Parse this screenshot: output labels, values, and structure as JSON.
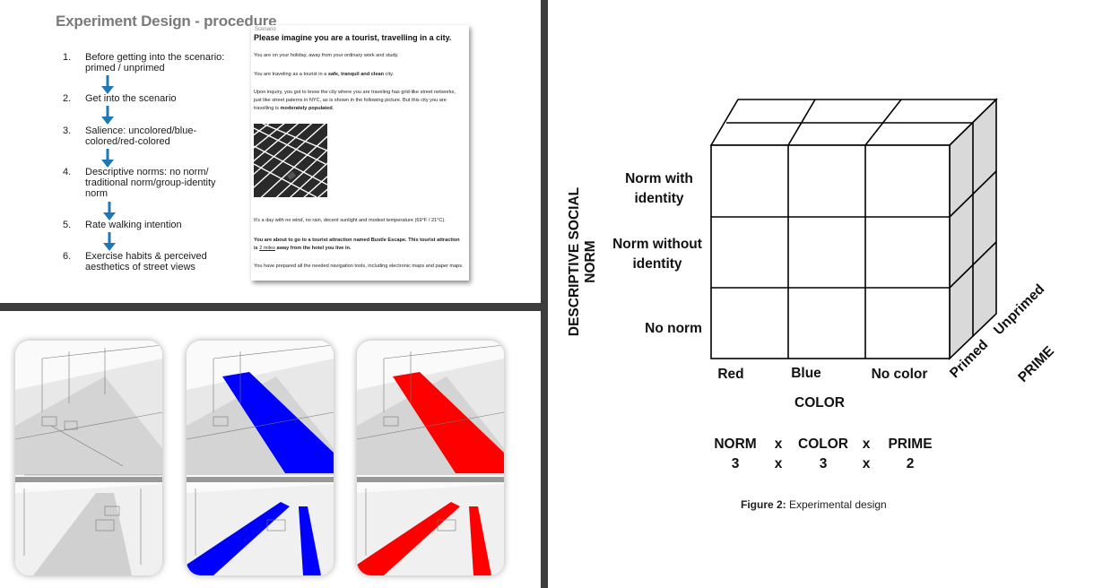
{
  "procedure": {
    "title": "Experiment Design - procedure",
    "steps": [
      {
        "num": "1.",
        "text": "Before getting into the scenario: primed / unprimed"
      },
      {
        "num": "2.",
        "text": "Get into the scenario"
      },
      {
        "num": "3.",
        "text": "Salience: uncolored/blue-colored/red-colored"
      },
      {
        "num": "4.",
        "text": "Descriptive norms: no norm/ traditional norm/group-identity norm"
      },
      {
        "num": "5.",
        "text": "Rate walking intention"
      },
      {
        "num": "6.",
        "text": "Exercise habits & perceived aesthetics of street views"
      }
    ],
    "arrow_color": "#1f77b4"
  },
  "scenario": {
    "label": "Scenario",
    "heading": "Please imagine you are a tourist, travelling in a city.",
    "p1": "You are on your holiday, away from your ordinary work and study.",
    "p2_pre": "You are traveling as a tourist in a ",
    "p2_bold": "safe, tranquil and clean",
    "p2_post": " city.",
    "p3_pre": "Upon inquiry, you got to know the city where you are traveling has grid-like street networks, just like street paterns in NYC, as is shown in the following picture. But this city you are travelling is ",
    "p3_bold": "moderately populated",
    "p3_post": ".",
    "p4": "It's a day with no wind, no rain, decent sunlight and modest temperature (69°F / 21°C).",
    "p5_bold1": "You are about to go to a tourist attraction named Bustle Escape. This tourist attraction is ",
    "p5_dist": "2 miles",
    "p5_bold2": " away from the hotel you live in.",
    "p6": "You have prepared all the needed navigation tools, including electronic maps and paper maps."
  },
  "street_images": {
    "colors": [
      "#c8c8c8",
      "#0000ff",
      "#ff0000"
    ]
  },
  "design": {
    "y_axis_title": "DESCRIPTIVE SOCIAL NORM",
    "rows": [
      "Norm with identity",
      "Norm without identity",
      "No norm"
    ],
    "x_axis_title": "COLOR",
    "cols": [
      "Red",
      "Blue",
      "No color"
    ],
    "z_axis_title": "PRIME",
    "depth": [
      "Primed",
      "Unprimed"
    ],
    "formula_top": [
      "NORM",
      "x",
      "COLOR",
      "x",
      "PRIME"
    ],
    "formula_bottom": [
      "3",
      "x",
      "3",
      "x",
      "2"
    ],
    "caption_bold": "Figure 2:",
    "caption_text": " Experimental design",
    "side_fill": "#d9d9d9"
  }
}
